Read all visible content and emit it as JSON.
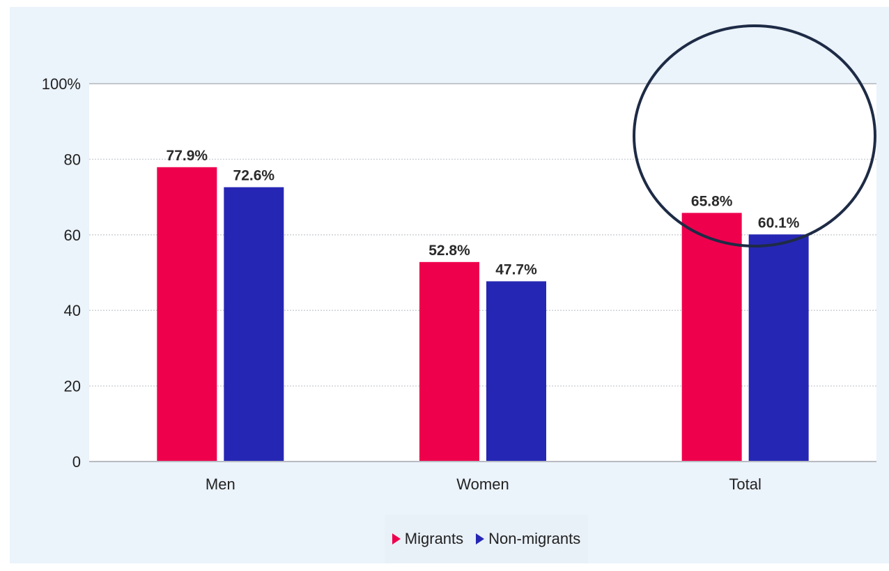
{
  "chart_data": {
    "type": "bar",
    "categories": [
      "Men",
      "Women",
      "Total"
    ],
    "series": [
      {
        "name": "Migrants",
        "values": [
          77.9,
          52.8,
          65.8
        ],
        "labels": [
          "77.9%",
          "52.8%",
          "65.8%"
        ],
        "color": "#ee004d"
      },
      {
        "name": "Non-migrants",
        "values": [
          72.6,
          47.7,
          60.1
        ],
        "labels": [
          "72.6%",
          "47.7%",
          "60.1%"
        ],
        "color": "#2626b4"
      }
    ],
    "ylim": [
      0,
      100
    ],
    "yticks": [
      0,
      20,
      40,
      60,
      80,
      100
    ],
    "ytick_labels": [
      "0",
      "20",
      "40",
      "60",
      "80",
      "100%"
    ],
    "title": "",
    "xlabel": "",
    "ylabel": "",
    "grid": true,
    "legend_position": "bottom-center",
    "annotation": {
      "shape": "ellipse",
      "target": "Total",
      "color": "#1e2b45"
    }
  }
}
